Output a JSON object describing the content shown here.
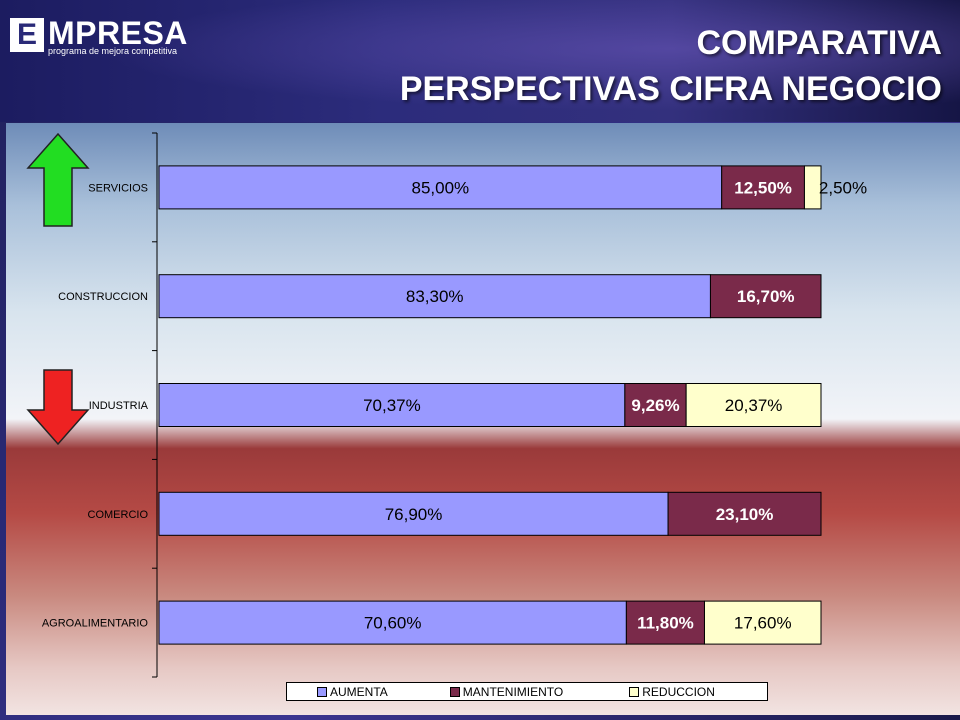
{
  "header": {
    "logo_letter": "E",
    "logo_word": "MPRESA",
    "logo_subtitle": "programa de mejora competitiva",
    "title_line1": "COMPARATIVA",
    "title_line2": "PERSPECTIVAS CIFRA NEGOCIO"
  },
  "colors": {
    "aumenta": "#9999ff",
    "mantenimiento": "#7a2a4a",
    "reduccion": "#ffffcc",
    "arrow_up": "#22dd22",
    "arrow_down": "#ee2222"
  },
  "chart_data": {
    "type": "bar",
    "orientation": "horizontal",
    "stacked": true,
    "categories": [
      "SERVICIOS",
      "CONSTRUCCION",
      "INDUSTRIA",
      "COMERCIO",
      "AGROALIMENTARIO"
    ],
    "series": [
      {
        "name": "AUMENTA",
        "values": [
          85.0,
          83.3,
          70.37,
          76.9,
          70.6
        ],
        "labels": [
          "85,00%",
          "83,30%",
          "70,37%",
          "76,90%",
          "70,60%"
        ]
      },
      {
        "name": "MANTENIMIENTO",
        "values": [
          12.5,
          16.7,
          9.26,
          23.1,
          11.8
        ],
        "labels": [
          "12,50%",
          "16,70%",
          "9,26%",
          "23,10%",
          "11,80%"
        ]
      },
      {
        "name": "REDUCCION",
        "values": [
          2.5,
          0,
          20.37,
          0,
          17.6
        ],
        "labels": [
          "2,50%",
          "",
          "20,37%",
          "",
          "17,60%"
        ]
      }
    ],
    "xlim": [
      0,
      100
    ],
    "legend_position": "bottom"
  }
}
